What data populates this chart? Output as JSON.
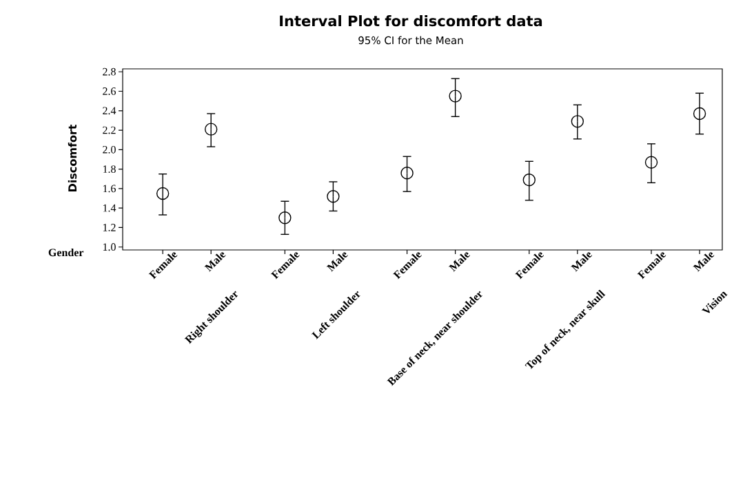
{
  "chart_data": {
    "type": "scatter",
    "title": "Interval Plot for discomfort data",
    "subtitle": "95% CI for the Mean",
    "ylabel": "Discomfort",
    "xlabel": "Gender",
    "categories": [
      "Female",
      "Male",
      "Female",
      "Male",
      "Female",
      "Male",
      "Female",
      "Male",
      "Female",
      "Male"
    ],
    "values": [
      1.55,
      2.21,
      1.3,
      1.52,
      1.76,
      2.55,
      1.69,
      2.29,
      1.87,
      2.37
    ],
    "errors": [
      [
        1.33,
        1.75
      ],
      [
        2.03,
        2.37
      ],
      [
        1.13,
        1.47
      ],
      [
        1.37,
        1.67
      ],
      [
        1.57,
        1.93
      ],
      [
        2.34,
        2.73
      ],
      [
        1.48,
        1.88
      ],
      [
        2.11,
        2.46
      ],
      [
        1.66,
        2.06
      ],
      [
        2.16,
        2.58
      ]
    ],
    "annotations": [
      "Right shoulder",
      "Left shoulder",
      "Base of neck, near shoulder",
      "Top of neck, near skull",
      "Vision"
    ],
    "color": "#000000",
    "marker": "circle",
    "ylim": [
      0.97,
      2.83
    ],
    "yticks": [
      {
        "value": 1.0,
        "label": "1.0"
      },
      {
        "value": 1.2,
        "label": "1.2"
      },
      {
        "value": 1.4,
        "label": "1.4"
      },
      {
        "value": 1.6,
        "label": "1.6"
      },
      {
        "value": 1.8,
        "label": "1.8"
      },
      {
        "value": 2.0,
        "label": "2.0"
      },
      {
        "value": 2.2,
        "label": "2.2"
      },
      {
        "value": 2.4,
        "label": "2.4"
      },
      {
        "value": 2.6,
        "label": "2.6"
      },
      {
        "value": 2.8,
        "label": "2.8"
      }
    ]
  }
}
